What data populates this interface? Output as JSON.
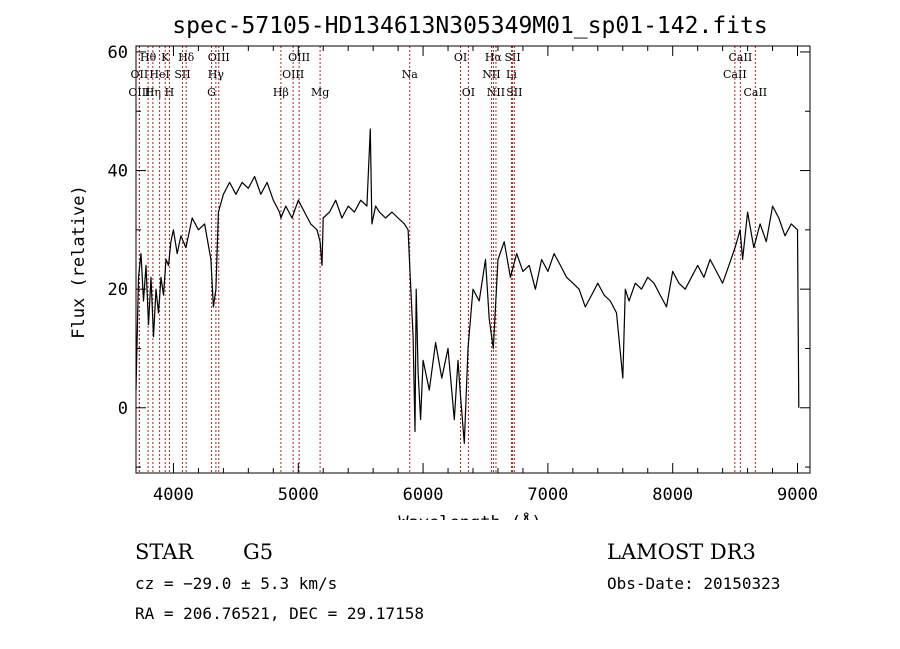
{
  "chart_data": {
    "type": "line",
    "title": "spec-57105-HD134613N305349M01_sp01-142.fits",
    "xlabel": "Wavelength (Å)",
    "ylabel": "Flux (relative)",
    "xlim": [
      3700,
      9100
    ],
    "ylim": [
      -11,
      61
    ],
    "xticks": [
      4000,
      5000,
      6000,
      7000,
      8000,
      9000
    ],
    "yticks": [
      0,
      20,
      40,
      60
    ],
    "line_color": "#000000",
    "marker_color": "#b22222",
    "series": [
      {
        "x": [
          3700,
          3720,
          3740,
          3760,
          3780,
          3800,
          3820,
          3840,
          3860,
          3880,
          3900,
          3920,
          3940,
          3960,
          3980,
          4000,
          4030,
          4060,
          4100,
          4150,
          4200,
          4250,
          4300,
          4320,
          4340,
          4360,
          4400,
          4450,
          4500,
          4550,
          4600,
          4650,
          4700,
          4750,
          4800,
          4850,
          4861,
          4900,
          4950,
          5000,
          5050,
          5100,
          5150,
          5175,
          5190,
          5200,
          5250,
          5300,
          5350,
          5400,
          5450,
          5500,
          5550,
          5577,
          5590,
          5620,
          5650,
          5700,
          5750,
          5800,
          5850,
          5880,
          5893,
          5920,
          5935,
          5945,
          5960,
          5980,
          6000,
          6050,
          6100,
          6150,
          6200,
          6250,
          6280,
          6300,
          6330,
          6360,
          6400,
          6450,
          6500,
          6530,
          6563,
          6600,
          6650,
          6700,
          6750,
          6800,
          6850,
          6900,
          6950,
          7000,
          7050,
          7100,
          7150,
          7200,
          7250,
          7300,
          7350,
          7400,
          7450,
          7500,
          7550,
          7600,
          7620,
          7650,
          7700,
          7750,
          7800,
          7850,
          7900,
          7950,
          8000,
          8050,
          8100,
          8150,
          8200,
          8250,
          8300,
          8350,
          8400,
          8450,
          8500,
          8540,
          8560,
          8600,
          8650,
          8700,
          8750,
          8800,
          8850,
          8900,
          8950,
          9000,
          9010
        ],
        "y": [
          3,
          22,
          26,
          18,
          24,
          14,
          22,
          12,
          20,
          16,
          22,
          19,
          25,
          24,
          28,
          30,
          26,
          29,
          27,
          32,
          30,
          31,
          25,
          17,
          20,
          33,
          36,
          38,
          36,
          38,
          37,
          39,
          36,
          38,
          35,
          33,
          32,
          34,
          32,
          35,
          33,
          31,
          30,
          28,
          24,
          32,
          33,
          35,
          32,
          34,
          33,
          35,
          34,
          47,
          31,
          34,
          33,
          32,
          33,
          32,
          31,
          30,
          24,
          12,
          -4,
          20,
          6,
          -2,
          8,
          3,
          11,
          5,
          10,
          -2,
          8,
          2,
          -6,
          10,
          20,
          18,
          25,
          15,
          10,
          25,
          28,
          22,
          26,
          23,
          24,
          20,
          25,
          23,
          26,
          24,
          22,
          21,
          20,
          17,
          19,
          21,
          19,
          18,
          16,
          5,
          20,
          18,
          21,
          20,
          22,
          21,
          19,
          17,
          23,
          21,
          20,
          22,
          24,
          22,
          25,
          23,
          21,
          24,
          27,
          30,
          25,
          33,
          27,
          31,
          28,
          34,
          32,
          29,
          31,
          30,
          0
        ]
      }
    ],
    "line_markers": [
      {
        "label": "Hθ",
        "x": 3797,
        "row": 1
      },
      {
        "label": "OII",
        "x": 3727,
        "row": 2
      },
      {
        "label": "OIII",
        "x": 3727,
        "row": 3
      },
      {
        "label": "Hη",
        "x": 3835,
        "row": 3
      },
      {
        "label": "HeI",
        "x": 3889,
        "row": 2
      },
      {
        "label": "K",
        "x": 3934,
        "row": 1
      },
      {
        "label": "H",
        "x": 3968,
        "row": 3
      },
      {
        "label": "SII",
        "x": 4072,
        "row": 2
      },
      {
        "label": "Hδ",
        "x": 4102,
        "row": 1
      },
      {
        "label": "OIII",
        "x": 4363,
        "row": 1
      },
      {
        "label": "Hγ",
        "x": 4340,
        "row": 2
      },
      {
        "label": "G",
        "x": 4305,
        "row": 3
      },
      {
        "label": "Hβ",
        "x": 4861,
        "row": 3
      },
      {
        "label": "OIII",
        "x": 5007,
        "row": 1
      },
      {
        "label": "OIII",
        "x": 4959,
        "row": 2
      },
      {
        "label": "Mg",
        "x": 5175,
        "row": 3
      },
      {
        "label": "Na",
        "x": 5893,
        "row": 2
      },
      {
        "label": "OI",
        "x": 6300,
        "row": 1
      },
      {
        "label": "OI",
        "x": 6363,
        "row": 3
      },
      {
        "label": "Hα",
        "x": 6563,
        "row": 1
      },
      {
        "label": "NII",
        "x": 6548,
        "row": 2
      },
      {
        "label": "NII",
        "x": 6584,
        "row": 3
      },
      {
        "label": "SII",
        "x": 6717,
        "row": 1
      },
      {
        "label": "Li",
        "x": 6708,
        "row": 2
      },
      {
        "label": "SII",
        "x": 6731,
        "row": 3
      },
      {
        "label": "CaII",
        "x": 8542,
        "row": 1
      },
      {
        "label": "CaII",
        "x": 8498,
        "row": 2
      },
      {
        "label": "CaII",
        "x": 8662,
        "row": 3
      }
    ]
  },
  "info": {
    "object_class": "STAR",
    "subclass": "G5",
    "survey": "LAMOST DR3",
    "cz": "cz = −29.0 ± 5.3 km/s",
    "obs_date": "Obs-Date: 20150323",
    "coords": "RA = 206.76521, DEC =  29.17158"
  }
}
